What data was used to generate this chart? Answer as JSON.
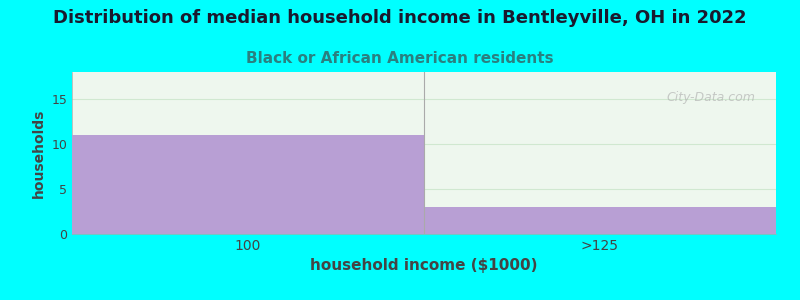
{
  "title": "Distribution of median household income in Bentleyville, OH in 2022",
  "subtitle": "Black or African American residents",
  "xlabel": "household income ($1000)",
  "ylabel": "households",
  "categories": [
    "100",
    ">125"
  ],
  "values": [
    11,
    3
  ],
  "ylim": [
    0,
    18
  ],
  "yticks": [
    0,
    5,
    10,
    15
  ],
  "bar_color": "#b89fd4",
  "bg_color": "#00ffff",
  "plot_bg_color": "#eef7ee",
  "title_color": "#1a1a2e",
  "subtitle_color": "#2a8080",
  "title_fontsize": 13,
  "subtitle_fontsize": 11,
  "xlabel_fontsize": 11,
  "ylabel_fontsize": 10,
  "watermark": "City-Data.com",
  "grid_color": "#d0e8d0",
  "tick_color": "#444444"
}
